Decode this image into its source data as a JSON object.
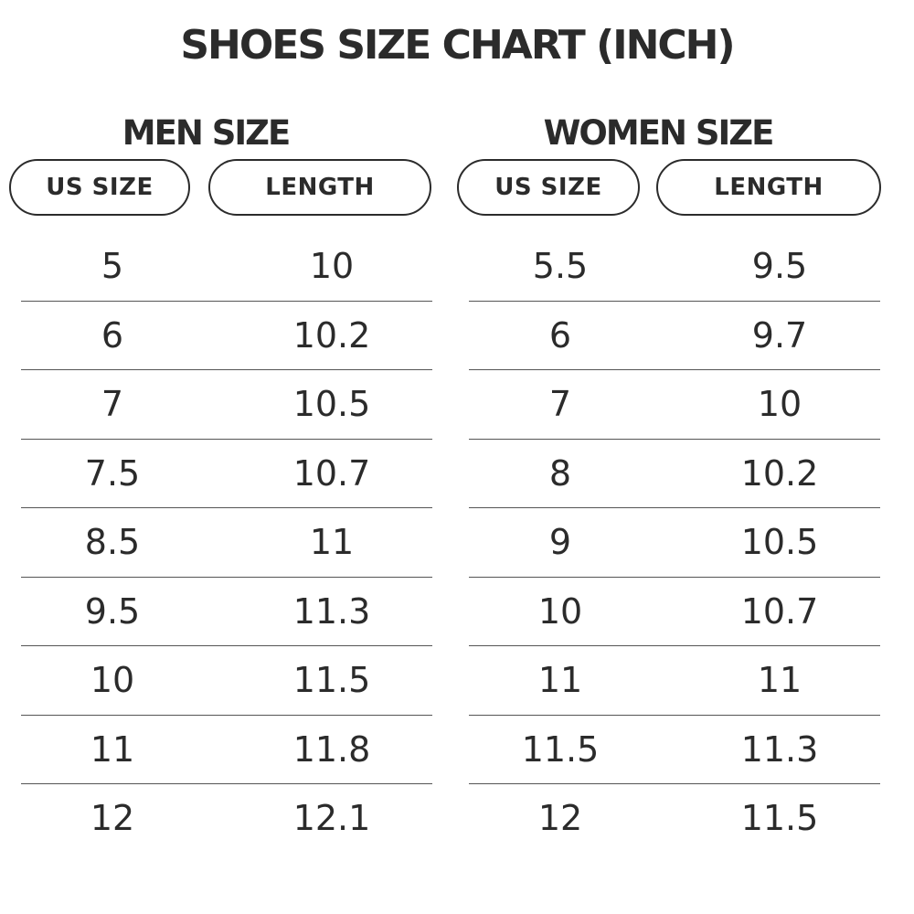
{
  "title": "SHOES SIZE CHART (INCH)",
  "men": {
    "heading": "MEN SIZE",
    "col_size": "US SIZE",
    "col_length": "LENGTH",
    "rows": [
      {
        "size": "5",
        "length": "10"
      },
      {
        "size": "6",
        "length": "10.2"
      },
      {
        "size": "7",
        "length": "10.5"
      },
      {
        "size": "7.5",
        "length": "10.7"
      },
      {
        "size": "8.5",
        "length": "11"
      },
      {
        "size": "9.5",
        "length": "11.3"
      },
      {
        "size": "10",
        "length": "11.5"
      },
      {
        "size": "11",
        "length": "11.8"
      },
      {
        "size": "12",
        "length": "12.1"
      }
    ]
  },
  "women": {
    "heading": "WOMEN SIZE",
    "col_size": "US SIZE",
    "col_length": "LENGTH",
    "rows": [
      {
        "size": "5.5",
        "length": "9.5"
      },
      {
        "size": "6",
        "length": "9.7"
      },
      {
        "size": "7",
        "length": "10"
      },
      {
        "size": "8",
        "length": "10.2"
      },
      {
        "size": "9",
        "length": "10.5"
      },
      {
        "size": "10",
        "length": "10.7"
      },
      {
        "size": "11",
        "length": "11"
      },
      {
        "size": "11.5",
        "length": "11.3"
      },
      {
        "size": "12",
        "length": "11.5"
      }
    ]
  }
}
